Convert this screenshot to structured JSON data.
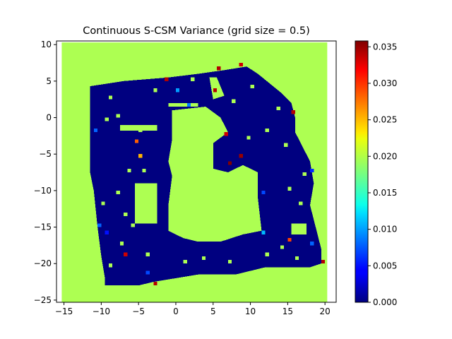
{
  "chart_data": {
    "type": "heatmap",
    "title": "Continuous S-CSM Variance (grid size = 0.5)",
    "xlabel": "",
    "ylabel": "",
    "grid_size": 0.5,
    "xlim": [
      -16,
      21.5
    ],
    "ylim": [
      -25.3,
      10.5
    ],
    "extent": {
      "x": [
        -15.3,
        20.3
      ],
      "y": [
        -25.3,
        10.3
      ]
    },
    "x_ticks": [
      -15,
      -10,
      -5,
      0,
      5,
      10,
      15,
      20
    ],
    "y_ticks": [
      10,
      5,
      0,
      -5,
      -10,
      -15,
      -20,
      -25
    ],
    "grid": false,
    "colormap": "jet",
    "background_value": 0.0195,
    "colorbar": {
      "min": 0.0,
      "max": 0.0358,
      "ticks": [
        0.0,
        0.005,
        0.01,
        0.015,
        0.02,
        0.025,
        0.03,
        0.035
      ],
      "tick_labels": [
        "0.000",
        "0.005",
        "0.010",
        "0.015",
        "0.020",
        "0.025",
        "0.030",
        "0.035"
      ]
    },
    "regions": [
      {
        "value": 0.0,
        "label": "low-variance region (outer ring)",
        "polygon": [
          [
            -11.5,
            4.3
          ],
          [
            -11.5,
            -7.5
          ],
          [
            -11,
            -10
          ],
          [
            -10.5,
            -15
          ],
          [
            -10,
            -19
          ],
          [
            -9.5,
            -22
          ],
          [
            -9.5,
            -23
          ],
          [
            -5,
            -23
          ],
          [
            -3,
            -22.5
          ],
          [
            3,
            -21.5
          ],
          [
            8,
            -21.5
          ],
          [
            12,
            -20.5
          ],
          [
            18,
            -20.5
          ],
          [
            19.5,
            -20
          ],
          [
            19.5,
            -18
          ],
          [
            18,
            -12
          ],
          [
            18.5,
            -9
          ],
          [
            18,
            -6
          ],
          [
            17,
            -4
          ],
          [
            16,
            -2
          ],
          [
            16,
            0
          ],
          [
            15.5,
            2
          ],
          [
            14,
            3.5
          ],
          [
            11,
            6
          ],
          [
            9.5,
            7
          ],
          [
            6.5,
            6.5
          ],
          [
            3,
            6
          ],
          [
            -1,
            5.5
          ],
          [
            -7,
            5
          ],
          [
            -11.5,
            4.3
          ]
        ]
      },
      {
        "value": 0.0195,
        "label": "inner free space",
        "polygon": [
          [
            -0.5,
            1
          ],
          [
            4,
            1.5
          ],
          [
            6,
            0
          ],
          [
            7,
            -2
          ],
          [
            5,
            -3.5
          ],
          [
            5,
            -7
          ],
          [
            7,
            -7.5
          ],
          [
            9,
            -6.5
          ],
          [
            11,
            -7.5
          ],
          [
            11,
            -11
          ],
          [
            11.5,
            -15.5
          ],
          [
            9,
            -16
          ],
          [
            6,
            -17
          ],
          [
            3,
            -17
          ],
          [
            1,
            -16.5
          ],
          [
            -1,
            -15.5
          ],
          [
            -1,
            -12
          ],
          [
            -0.5,
            -8
          ],
          [
            -1,
            -6
          ],
          [
            -0.5,
            -3
          ],
          [
            -0.5,
            1
          ]
        ]
      },
      {
        "value": 0.0195,
        "label": "left pocket",
        "polygon": [
          [
            -5.5,
            -9
          ],
          [
            -2.5,
            -9
          ],
          [
            -2.5,
            -14.5
          ],
          [
            -5.5,
            -14.5
          ],
          [
            -5.5,
            -9
          ]
        ]
      },
      {
        "value": 0.0195,
        "label": "upper-left corridor",
        "polygon": [
          [
            -7.5,
            -1
          ],
          [
            -2.5,
            -1
          ],
          [
            -2.5,
            -1.8
          ],
          [
            -7.5,
            -1.8
          ],
          [
            -7.5,
            -1
          ]
        ]
      },
      {
        "value": 0.0195,
        "label": "top-center gap",
        "polygon": [
          [
            -1,
            2
          ],
          [
            3,
            2
          ],
          [
            3,
            1.5
          ],
          [
            -1,
            1.5
          ],
          [
            -1,
            2
          ]
        ]
      },
      {
        "value": 0.0195,
        "label": "top-right pocket",
        "polygon": [
          [
            4.5,
            5.5
          ],
          [
            5.5,
            5.5
          ],
          [
            6.5,
            3
          ],
          [
            5,
            2.5
          ],
          [
            4.5,
            5.5
          ]
        ]
      },
      {
        "value": 0.0195,
        "label": "lower-right pocket",
        "polygon": [
          [
            15.5,
            -14.5
          ],
          [
            17.5,
            -14.5
          ],
          [
            17.5,
            -16
          ],
          [
            15.5,
            -16
          ],
          [
            15.5,
            -14.5
          ]
        ]
      }
    ],
    "cells": [
      {
        "x": 8.5,
        "y": 7,
        "value": 0.033
      },
      {
        "x": 5.5,
        "y": 6.5,
        "value": 0.034
      },
      {
        "x": -1.5,
        "y": 5,
        "value": 0.034
      },
      {
        "x": 5,
        "y": 3.5,
        "value": 0.034
      },
      {
        "x": 0,
        "y": 3.5,
        "value": 0.01
      },
      {
        "x": 1.5,
        "y": 1.5,
        "value": 0.009
      },
      {
        "x": 15.5,
        "y": 0.5,
        "value": 0.034
      },
      {
        "x": -11,
        "y": -2,
        "value": 0.008
      },
      {
        "x": 6.5,
        "y": -2.5,
        "value": 0.033
      },
      {
        "x": -5.5,
        "y": -3.5,
        "value": 0.028
      },
      {
        "x": -5,
        "y": -5.5,
        "value": 0.025
      },
      {
        "x": 8.5,
        "y": -5.5,
        "value": 0.035
      },
      {
        "x": 7,
        "y": -6.5,
        "value": 0.036
      },
      {
        "x": 18,
        "y": -7.5,
        "value": 0.006
      },
      {
        "x": 11.5,
        "y": -10.5,
        "value": 0.007
      },
      {
        "x": -10.5,
        "y": -15,
        "value": 0.008
      },
      {
        "x": -9.5,
        "y": -16,
        "value": 0.005
      },
      {
        "x": 11.5,
        "y": -16,
        "value": 0.011
      },
      {
        "x": 15,
        "y": -17,
        "value": 0.029
      },
      {
        "x": 18,
        "y": -17.5,
        "value": 0.008
      },
      {
        "x": -7,
        "y": -19,
        "value": 0.033
      },
      {
        "x": 19.5,
        "y": -20,
        "value": 0.034
      },
      {
        "x": -4,
        "y": -21.5,
        "value": 0.007
      },
      {
        "x": -3,
        "y": -23,
        "value": 0.034
      }
    ],
    "noise_cells": [
      {
        "x": -9.5,
        "y": -0.5
      },
      {
        "x": -8,
        "y": 0
      },
      {
        "x": -5,
        "y": -2
      },
      {
        "x": -6.5,
        "y": -7.5
      },
      {
        "x": -4.5,
        "y": -7.5
      },
      {
        "x": -8,
        "y": -10.5
      },
      {
        "x": -7,
        "y": -13.5
      },
      {
        "x": -6,
        "y": -15
      },
      {
        "x": -7.5,
        "y": -17.5
      },
      {
        "x": -4,
        "y": -19
      },
      {
        "x": 1,
        "y": -20
      },
      {
        "x": 3.5,
        "y": -19.5
      },
      {
        "x": 7,
        "y": -20
      },
      {
        "x": 12,
        "y": -19
      },
      {
        "x": 14,
        "y": -18
      },
      {
        "x": 16.5,
        "y": -12
      },
      {
        "x": 15,
        "y": -10
      },
      {
        "x": 17,
        "y": -8
      },
      {
        "x": 14.5,
        "y": -4
      },
      {
        "x": 9.5,
        "y": -3
      },
      {
        "x": 12,
        "y": -2
      },
      {
        "x": 13.5,
        "y": 1
      },
      {
        "x": 10,
        "y": 4
      },
      {
        "x": 7.5,
        "y": 2
      },
      {
        "x": -9,
        "y": 2.5
      },
      {
        "x": -3,
        "y": 3.5
      },
      {
        "x": 2,
        "y": 5
      },
      {
        "x": -10,
        "y": -12
      },
      {
        "x": -9,
        "y": -20.5
      },
      {
        "x": 16,
        "y": -19.5
      }
    ]
  }
}
